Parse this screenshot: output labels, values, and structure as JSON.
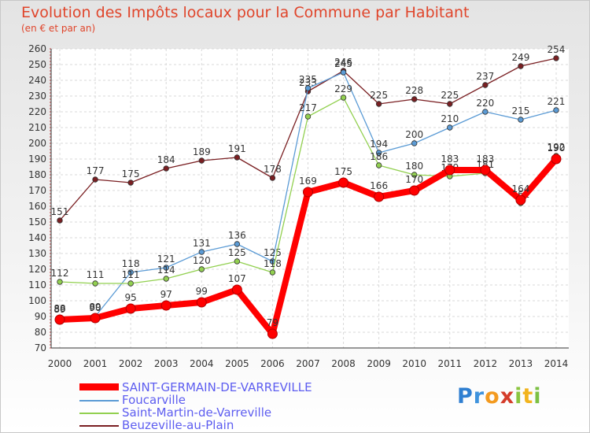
{
  "chart_data": {
    "type": "line",
    "title": "Evolution des Impôts locaux pour la Commune par Habitant",
    "subtitle": "(en € et par an)",
    "xlabel": "",
    "ylabel": "",
    "ylim": [
      70,
      260
    ],
    "ytick_step": 10,
    "grid": true,
    "legend_position": "bottom-left",
    "categories": [
      "2000",
      "2001",
      "2002",
      "2003",
      "2004",
      "2005",
      "2006",
      "2007",
      "2008",
      "2009",
      "2010",
      "2011",
      "2012",
      "2013",
      "2014"
    ],
    "series": [
      {
        "name": "Beuzeville-au-Plain",
        "color": "#7a1f22",
        "values": [
          151,
          177,
          175,
          184,
          189,
          191,
          178,
          233,
          246,
          225,
          228,
          225,
          237,
          249,
          254
        ]
      },
      {
        "name": "Foucarville",
        "color": "#5b9bd5",
        "values": [
          89,
          90,
          118,
          121,
          131,
          136,
          125,
          235,
          245,
          194,
          200,
          210,
          220,
          215,
          221
        ]
      },
      {
        "name": "Saint-Martin-de-Varreville",
        "color": "#92d050",
        "values": [
          112,
          111,
          111,
          114,
          120,
          125,
          118,
          217,
          229,
          186,
          180,
          179,
          181,
          162,
          192
        ]
      },
      {
        "name": "SAINT-GERMAIN-DE-VARREVILLE",
        "color": "#ff0000",
        "values": [
          88,
          89,
          95,
          97,
          99,
          107,
          79,
          169,
          175,
          166,
          170,
          183,
          183,
          164,
          190
        ]
      }
    ]
  },
  "legend_order": [
    3,
    1,
    2,
    0
  ],
  "logo": {
    "letters": [
      "P",
      "r",
      "o",
      "x",
      "i",
      "t",
      "i"
    ],
    "colors": [
      "#2f7fd1",
      "#3f93dd",
      "#f39a1f",
      "#d43c2a",
      "#8bc53f",
      "#f2b41e",
      "#7cc043"
    ]
  }
}
